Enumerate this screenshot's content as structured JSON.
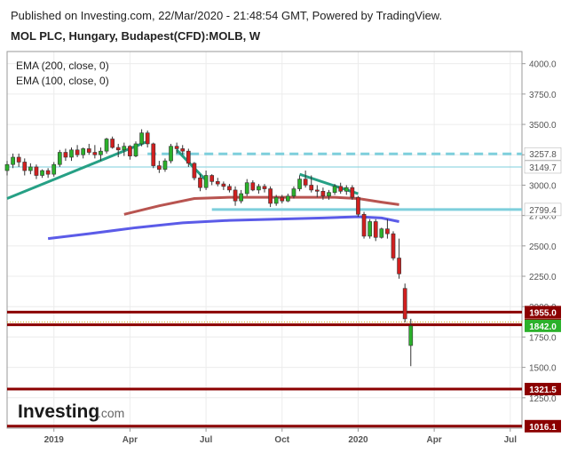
{
  "header": {
    "published": "Published on Investing.com, 22/Mar/2020 - 21:48:54 GMT, Powered by TradingView.",
    "symbol": "MOL PLC, Hungary, Budapest(CFD):MOLB, W"
  },
  "legend": [
    "EMA (200, close, 0)",
    "EMA (100, close, 0)"
  ],
  "logo": {
    "word": "Investing",
    "suffix": ".com"
  },
  "colors": {
    "up": "#2bb12b",
    "down": "#d11f1f",
    "ema200": "#b85450",
    "ema100": "#5b5be8",
    "trend": "#26a085",
    "support": "#7ecfdc",
    "resistance": "#7ecfdc",
    "level": "#8b0000",
    "price": "#2bb12b"
  },
  "chart_data": {
    "type": "candlestick",
    "ylim": [
      1000,
      4100
    ],
    "ytick_labels": [
      "4000.0",
      "3750.0",
      "3500.0",
      "3250.0",
      "3000.0",
      "2750.0",
      "2500.0",
      "2250.0",
      "2000.0",
      "1750.0",
      "1500.0",
      "1250.0"
    ],
    "yticks": [
      4000,
      3750,
      3500,
      3250,
      3000,
      2750,
      2500,
      2250,
      2000,
      1750,
      1500,
      1250
    ],
    "x_labels": [
      "2019",
      "Apr",
      "Jul",
      "Oct",
      "2020",
      "Apr",
      "Jul"
    ],
    "x_label_weeks": [
      0,
      13,
      26,
      39,
      52,
      65,
      78
    ],
    "x_range": [
      -8,
      80
    ],
    "candles": [
      [
        -8,
        3120,
        3200,
        3080,
        3170
      ],
      [
        -7,
        3170,
        3260,
        3140,
        3230
      ],
      [
        -6,
        3230,
        3260,
        3150,
        3190
      ],
      [
        -5,
        3190,
        3220,
        3080,
        3120
      ],
      [
        -4,
        3120,
        3180,
        3090,
        3150
      ],
      [
        -3,
        3150,
        3170,
        3050,
        3080
      ],
      [
        -2,
        3080,
        3130,
        3060,
        3120
      ],
      [
        -1,
        3120,
        3140,
        3060,
        3090
      ],
      [
        0,
        3090,
        3190,
        3070,
        3170
      ],
      [
        1,
        3170,
        3290,
        3150,
        3270
      ],
      [
        2,
        3270,
        3300,
        3200,
        3230
      ],
      [
        3,
        3230,
        3310,
        3200,
        3290
      ],
      [
        4,
        3290,
        3330,
        3230,
        3250
      ],
      [
        5,
        3250,
        3310,
        3220,
        3300
      ],
      [
        6,
        3300,
        3340,
        3250,
        3270
      ],
      [
        7,
        3270,
        3330,
        3220,
        3250
      ],
      [
        8,
        3250,
        3310,
        3200,
        3280
      ],
      [
        9,
        3280,
        3390,
        3260,
        3380
      ],
      [
        10,
        3380,
        3400,
        3300,
        3310
      ],
      [
        11,
        3310,
        3340,
        3230,
        3290
      ],
      [
        12,
        3290,
        3350,
        3240,
        3320
      ],
      [
        13,
        3320,
        3330,
        3210,
        3240
      ],
      [
        14,
        3240,
        3360,
        3230,
        3340
      ],
      [
        15,
        3340,
        3460,
        3320,
        3430
      ],
      [
        16,
        3430,
        3450,
        3310,
        3340
      ],
      [
        17,
        3340,
        3350,
        3140,
        3160
      ],
      [
        18,
        3160,
        3200,
        3100,
        3130
      ],
      [
        19,
        3130,
        3220,
        3110,
        3200
      ],
      [
        20,
        3200,
        3340,
        3180,
        3320
      ],
      [
        21,
        3320,
        3350,
        3260,
        3300
      ],
      [
        22,
        3300,
        3330,
        3250,
        3280
      ],
      [
        23,
        3280,
        3300,
        3150,
        3180
      ],
      [
        24,
        3180,
        3190,
        3040,
        3060
      ],
      [
        25,
        3060,
        3090,
        2950,
        2980
      ],
      [
        26,
        2980,
        3120,
        2960,
        3080
      ],
      [
        27,
        3080,
        3090,
        3000,
        3030
      ],
      [
        28,
        3030,
        3060,
        2990,
        3010
      ],
      [
        29,
        3010,
        3030,
        2960,
        2990
      ],
      [
        30,
        2990,
        3010,
        2940,
        2960
      ],
      [
        31,
        2960,
        2990,
        2830,
        2870
      ],
      [
        32,
        2870,
        2960,
        2850,
        2930
      ],
      [
        33,
        2930,
        3050,
        2910,
        3020
      ],
      [
        34,
        3020,
        3040,
        2950,
        2960
      ],
      [
        35,
        2960,
        3010,
        2930,
        2990
      ],
      [
        36,
        2990,
        3010,
        2940,
        2970
      ],
      [
        37,
        2970,
        2990,
        2820,
        2850
      ],
      [
        38,
        2850,
        2920,
        2830,
        2900
      ],
      [
        39,
        2900,
        2920,
        2850,
        2870
      ],
      [
        40,
        2870,
        2930,
        2860,
        2910
      ],
      [
        41,
        2910,
        2990,
        2890,
        2970
      ],
      [
        42,
        2970,
        3080,
        2950,
        3050
      ],
      [
        43,
        3050,
        3120,
        2980,
        3000
      ],
      [
        44,
        3000,
        3080,
        2940,
        2960
      ],
      [
        45,
        2960,
        3000,
        2900,
        2950
      ],
      [
        46,
        2950,
        2980,
        2880,
        2910
      ],
      [
        47,
        2910,
        2960,
        2880,
        2940
      ],
      [
        48,
        2940,
        3010,
        2920,
        2990
      ],
      [
        49,
        2990,
        3020,
        2930,
        2950
      ],
      [
        50,
        2950,
        3000,
        2920,
        2980
      ],
      [
        51,
        2980,
        3000,
        2880,
        2900
      ],
      [
        52,
        2900,
        2910,
        2740,
        2760
      ],
      [
        53,
        2760,
        2780,
        2560,
        2580
      ],
      [
        54,
        2580,
        2720,
        2560,
        2700
      ],
      [
        55,
        2700,
        2720,
        2540,
        2570
      ],
      [
        56,
        2570,
        2650,
        2560,
        2640
      ],
      [
        57,
        2640,
        2720,
        2560,
        2600
      ],
      [
        58,
        2600,
        2620,
        2380,
        2400
      ],
      [
        59,
        2400,
        2560,
        2230,
        2270
      ],
      [
        60,
        2150,
        2190,
        1870,
        1900
      ],
      [
        61,
        1680,
        1900,
        1510,
        1842
      ]
    ],
    "ema200": [
      [
        12,
        2760
      ],
      [
        18,
        2830
      ],
      [
        24,
        2890
      ],
      [
        30,
        2900
      ],
      [
        36,
        2900
      ],
      [
        42,
        2900
      ],
      [
        48,
        2900
      ],
      [
        52,
        2890
      ],
      [
        56,
        2860
      ],
      [
        59,
        2840
      ]
    ],
    "ema100": [
      [
        -1,
        2560
      ],
      [
        6,
        2600
      ],
      [
        14,
        2650
      ],
      [
        22,
        2690
      ],
      [
        30,
        2710
      ],
      [
        38,
        2720
      ],
      [
        46,
        2730
      ],
      [
        52,
        2740
      ],
      [
        56,
        2730
      ],
      [
        59,
        2700
      ]
    ],
    "trendlines": [
      [
        [
          -8,
          2890
        ],
        [
          16,
          3360
        ]
      ],
      [
        [
          42,
          3090
        ],
        [
          52,
          2930
        ]
      ],
      [
        [
          21,
          3290
        ],
        [
          26,
          3040
        ]
      ]
    ],
    "horizontal_levels": [
      {
        "value": 3257.8,
        "label": "3257.8",
        "style": "dashed",
        "color": "#7ecfdc",
        "x_from": 16
      },
      {
        "value": 3149.7,
        "label": "3149.7",
        "style": "thin",
        "color": "#7ecfdc",
        "x_from": -8
      },
      {
        "value": 2799.4,
        "label": "2799.4",
        "style": "solid",
        "color": "#7ecfdc",
        "x_from": 27
      },
      {
        "value": 1955.0,
        "label": "1955.0",
        "style": "thick",
        "color": "#8b0000",
        "x_from": -8
      },
      {
        "value": 1850.5,
        "label": "1850.5",
        "style": "thick",
        "color": "#8b0000",
        "x_from": -8
      },
      {
        "value": 1321.5,
        "label": "1321.5",
        "style": "thick",
        "color": "#8b0000",
        "x_from": -8
      },
      {
        "value": 1016.1,
        "label": "1016.1",
        "style": "thick",
        "color": "#8b0000",
        "x_from": -8
      }
    ],
    "last_price": {
      "value": 1842.0,
      "label": "1842.0"
    }
  }
}
